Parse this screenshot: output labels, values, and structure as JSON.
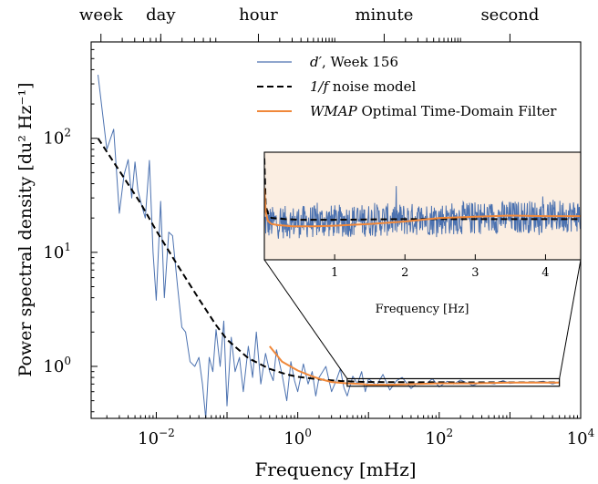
{
  "chart_data": {
    "type": "line",
    "xlabel": "Frequency [mHz]",
    "ylabel": "Power spectral density [du² Hz⁻¹]",
    "xscale": "log",
    "yscale": "log",
    "xlim": [
      0.0012,
      10000
    ],
    "ylim": [
      0.35,
      700
    ],
    "x_ticks": [
      {
        "value": 0.01,
        "base": "10",
        "exp": "−2"
      },
      {
        "value": 1,
        "base": "10",
        "exp": "0"
      },
      {
        "value": 100,
        "base": "10",
        "exp": "2"
      },
      {
        "value": 10000,
        "base": "10",
        "exp": "4"
      }
    ],
    "y_ticks": [
      {
        "value": 1,
        "base": "10",
        "exp": "0"
      },
      {
        "value": 10,
        "base": "10",
        "exp": "1"
      },
      {
        "value": 100,
        "base": "10",
        "exp": "2"
      }
    ],
    "top_axis_labels": [
      {
        "label": "week",
        "freq_mhz": 0.00165
      },
      {
        "label": "day",
        "freq_mhz": 0.01157
      },
      {
        "label": "hour",
        "freq_mhz": 0.2778
      },
      {
        "label": "minute",
        "freq_mhz": 16.67
      },
      {
        "label": "second",
        "freq_mhz": 1000
      }
    ],
    "legend": {
      "position": "top-right",
      "entries": [
        {
          "label_main": "d′",
          "label_rest": ", Week 156",
          "style": "solid",
          "color": "#4c72b0"
        },
        {
          "label_main": "1/f",
          "label_rest": " noise model",
          "style": "dashed",
          "color": "#000000"
        },
        {
          "label_main": "WMAP",
          "label_rest": " Optimal Time-Domain Filter",
          "style": "solid",
          "color": "#f0883a"
        }
      ]
    },
    "series": [
      {
        "name": "d′, Week 156",
        "color": "#4c72b0",
        "x": [
          0.0015,
          0.002,
          0.0025,
          0.003,
          0.0035,
          0.004,
          0.0045,
          0.005,
          0.0055,
          0.006,
          0.007,
          0.008,
          0.009,
          0.01,
          0.0115,
          0.013,
          0.015,
          0.017,
          0.02,
          0.023,
          0.026,
          0.03,
          0.035,
          0.04,
          0.045,
          0.05,
          0.056,
          0.063,
          0.07,
          0.08,
          0.09,
          0.1,
          0.115,
          0.13,
          0.15,
          0.17,
          0.2,
          0.23,
          0.26,
          0.3,
          0.35,
          0.4,
          0.45,
          0.5,
          0.6,
          0.7,
          0.8,
          0.9,
          1,
          1.2,
          1.4,
          1.6,
          1.8,
          2,
          2.5,
          3,
          3.5,
          4,
          4.5,
          5,
          6,
          7,
          8,
          9,
          10,
          13,
          16,
          20,
          25,
          30,
          40,
          50,
          65,
          80,
          100,
          130,
          160,
          200,
          300,
          400,
          600,
          800,
          1000,
          1500,
          2000,
          3000,
          4000,
          5000
        ],
        "y": [
          360,
          80,
          120,
          22,
          48,
          65,
          30,
          62,
          35,
          28,
          20,
          64,
          10,
          3.8,
          28,
          4,
          15,
          14,
          5,
          2.2,
          2,
          1.1,
          1,
          1.2,
          0.7,
          0.35,
          1.2,
          0.9,
          2.1,
          1,
          2.5,
          0.45,
          1.8,
          0.9,
          1.2,
          0.6,
          1.5,
          0.8,
          2,
          0.7,
          1.3,
          0.9,
          0.75,
          1.4,
          0.85,
          0.5,
          1.1,
          0.75,
          0.6,
          1.05,
          0.7,
          0.9,
          0.55,
          0.8,
          1,
          0.6,
          0.75,
          0.95,
          0.65,
          0.55,
          0.82,
          0.7,
          0.9,
          0.6,
          0.78,
          0.68,
          0.85,
          0.62,
          0.75,
          0.8,
          0.64,
          0.72,
          0.7,
          0.78,
          0.66,
          0.74,
          0.7,
          0.76,
          0.68,
          0.73,
          0.7,
          0.75,
          0.71,
          0.73,
          0.72,
          0.74,
          0.7,
          0.73
        ]
      },
      {
        "name": "1/f noise model",
        "color": "#000000",
        "x": [
          0.0015,
          0.003,
          0.006,
          0.01,
          0.02,
          0.04,
          0.07,
          0.1,
          0.2,
          0.4,
          0.7,
          1,
          2,
          4,
          7,
          10,
          30,
          100,
          300,
          1000,
          3000,
          5000
        ],
        "y": [
          100,
          52,
          27,
          15.5,
          7.7,
          3.9,
          2.3,
          1.72,
          1.18,
          0.95,
          0.85,
          0.81,
          0.77,
          0.745,
          0.735,
          0.73,
          0.727,
          0.725,
          0.724,
          0.724,
          0.724,
          0.724
        ]
      },
      {
        "name": "WMAP Optimal Time-Domain Filter",
        "color": "#f0883a",
        "x": [
          0.4,
          0.6,
          1,
          1.5,
          2,
          3,
          5,
          8,
          10,
          20,
          50,
          100,
          300,
          1000,
          3000,
          5000
        ],
        "y": [
          1.5,
          1.1,
          0.92,
          0.83,
          0.78,
          0.73,
          0.71,
          0.7,
          0.69,
          0.69,
          0.7,
          0.71,
          0.71,
          0.72,
          0.72,
          0.72
        ]
      }
    ],
    "inset": {
      "xlabel": "Frequency [Hz]",
      "xlim": [
        0,
        4.5
      ],
      "x_ticks": [
        1,
        2,
        3,
        4
      ],
      "x_tick_labels": [
        "1",
        "2",
        "3",
        "4"
      ],
      "ylim": [
        0.1,
        1.9
      ],
      "zoom_region_mhz": [
        5,
        5000
      ],
      "zoom_region_psd": [
        0.67,
        0.78
      ],
      "background": "#fbeee2",
      "filter_curve": {
        "x": [
          0,
          0.02,
          0.05,
          0.1,
          0.2,
          0.4,
          0.7,
          1,
          1.5,
          2,
          2.5,
          3,
          3.5,
          4,
          4.5
        ],
        "y": [
          1.3,
          0.9,
          0.75,
          0.7,
          0.68,
          0.66,
          0.66,
          0.67,
          0.7,
          0.74,
          0.8,
          0.82,
          0.84,
          0.83,
          0.83
        ]
      },
      "model_curve": {
        "x": [
          0,
          0.02,
          0.05,
          0.1,
          0.3,
          0.5,
          1,
          2,
          3,
          4,
          4.5
        ],
        "y": [
          1.8,
          1.0,
          0.88,
          0.8,
          0.78,
          0.77,
          0.77,
          0.78,
          0.78,
          0.78,
          0.78
        ]
      }
    }
  }
}
